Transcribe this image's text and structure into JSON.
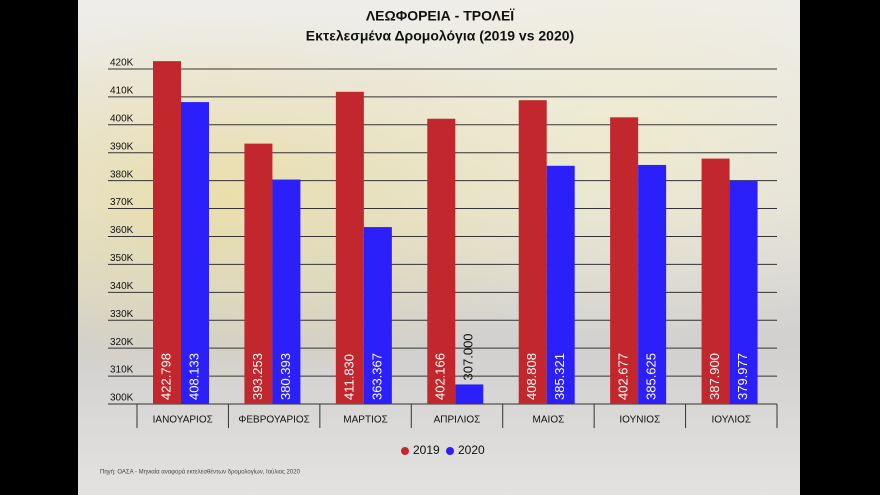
{
  "chart_data": {
    "type": "bar",
    "title": "ΛΕΩΦΟΡΕΙΑ - ΤΡΟΛΕΪ",
    "subtitle": "Εκτελεσμένα Δρομολόγια (2019 vs 2020)",
    "categories": [
      "ΙΑΝΟΥΑΡΙΟΣ",
      "ΦΕΒΡΟΥΑΡΙΟΣ",
      "ΜΑΡΤΙΟΣ",
      "ΑΠΡΙΛΙΟΣ",
      "ΜΑΙΟΣ",
      "ΙΟΥΝΙΟΣ",
      "ΙΟΥΛΙΟΣ"
    ],
    "series": [
      {
        "name": "2019",
        "color": "#c1272d",
        "values": [
          422798,
          393253,
          411830,
          402166,
          408808,
          402677,
          387900
        ],
        "value_labels": [
          "422.798",
          "393.253",
          "411.830",
          "402.166",
          "408.808",
          "402.677",
          "387.900"
        ]
      },
      {
        "name": "2020",
        "color": "#2b1ffa",
        "values": [
          408133,
          380393,
          363367,
          307000,
          385321,
          385625,
          379977
        ],
        "value_labels": [
          "408.133",
          "380.393",
          "363.367",
          "307.000",
          "385.321",
          "385.625",
          "379.977"
        ]
      }
    ],
    "ylim": [
      300000,
      425000
    ],
    "yticks": [
      {
        "value": 300000,
        "label": "300K"
      },
      {
        "value": 310000,
        "label": "310K"
      },
      {
        "value": 320000,
        "label": "320K"
      },
      {
        "value": 330000,
        "label": "330K"
      },
      {
        "value": 340000,
        "label": "340K"
      },
      {
        "value": 350000,
        "label": "350K"
      },
      {
        "value": 360000,
        "label": "360K"
      },
      {
        "value": 370000,
        "label": "370K"
      },
      {
        "value": 380000,
        "label": "380K"
      },
      {
        "value": 390000,
        "label": "390K"
      },
      {
        "value": 400000,
        "label": "400K"
      },
      {
        "value": 410000,
        "label": "410K"
      },
      {
        "value": 420000,
        "label": "420K"
      }
    ],
    "grid": true,
    "legend": "bottom",
    "source": "Πηγή: ΟΑΣΑ - Μηνιαία αναφορά εκτελεσθέντων δρομολογίων, Ιούλιος 2020"
  }
}
